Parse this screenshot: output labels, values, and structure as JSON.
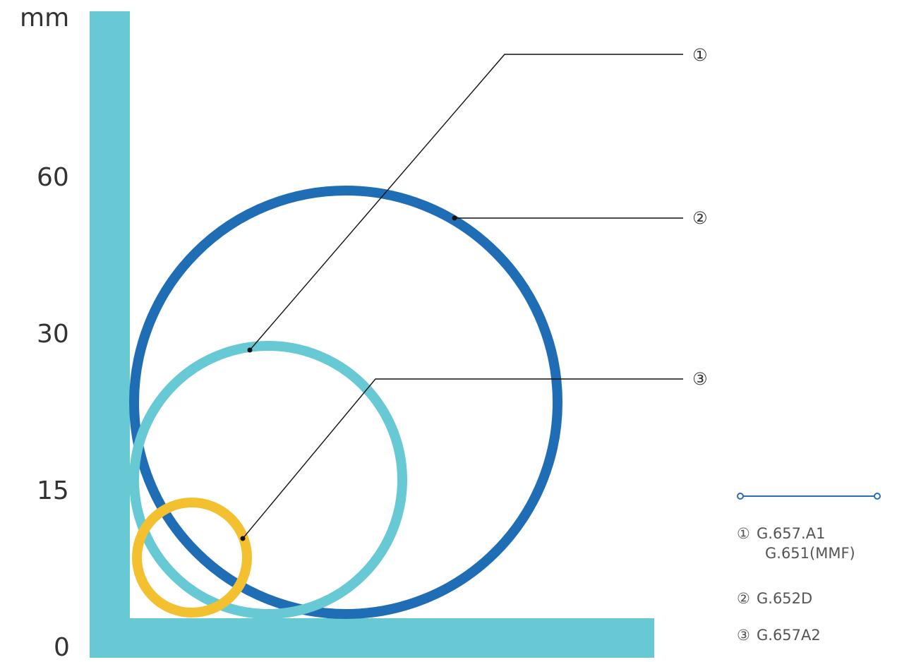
{
  "diagram": {
    "unit_label": "mm",
    "axis_ticks": [
      "60",
      "30",
      "15",
      "0"
    ],
    "colors": {
      "axis": "#66c9d4",
      "circle_1": "#66c9d4",
      "circle_2": "#1f6db5",
      "circle_3": "#f3c130",
      "leader": "#111111",
      "legend_line": "#2a6db5"
    },
    "markers": [
      {
        "id": "1",
        "symbol": "①"
      },
      {
        "id": "2",
        "symbol": "②"
      },
      {
        "id": "3",
        "symbol": "③"
      }
    ]
  },
  "legend": {
    "items": [
      {
        "symbol": "①",
        "lines": [
          "G.657.A1",
          "G.651(MMF)"
        ]
      },
      {
        "symbol": "②",
        "lines": [
          "G.652D"
        ]
      },
      {
        "symbol": "③",
        "lines": [
          "G.657A2"
        ]
      }
    ]
  }
}
